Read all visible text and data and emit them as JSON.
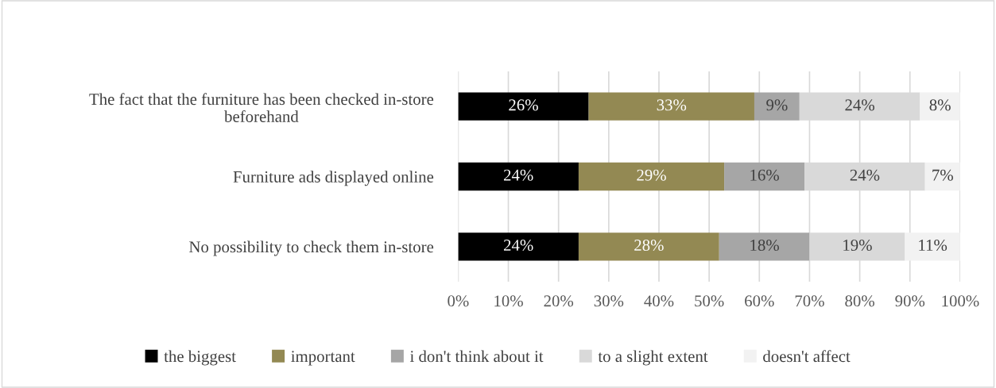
{
  "chart_data": {
    "type": "bar",
    "orientation": "horizontal",
    "stacked": true,
    "categories": [
      "The fact that the furniture has been checked in-store\nbeforehand",
      "Furniture ads displayed online",
      "No possibility to check them in-store"
    ],
    "series": [
      {
        "name": "the biggest",
        "color": "#000000",
        "values": [
          26,
          24,
          24
        ],
        "value_labels": [
          "26%",
          "24%",
          "24%"
        ]
      },
      {
        "name": "important",
        "color": "#938953",
        "values": [
          33,
          29,
          28
        ],
        "value_labels": [
          "33%",
          "29%",
          "28%"
        ]
      },
      {
        "name": "i don't think about it",
        "color": "#a6a6a6",
        "values": [
          9,
          16,
          18
        ],
        "value_labels": [
          "9%",
          "16%",
          "18%"
        ]
      },
      {
        "name": "to a slight extent",
        "color": "#d9d9d9",
        "values": [
          24,
          24,
          19
        ],
        "value_labels": [
          "24%",
          "24%",
          "19%"
        ]
      },
      {
        "name": "doesn't affect",
        "color": "#f2f2f2",
        "values": [
          8,
          7,
          11
        ],
        "value_labels": [
          "8%",
          "7%",
          "11%"
        ]
      }
    ],
    "xlim": [
      0,
      100
    ],
    "xticks": [
      {
        "value": 0,
        "label": "0%"
      },
      {
        "value": 10,
        "label": "10%"
      },
      {
        "value": 20,
        "label": "20%"
      },
      {
        "value": 30,
        "label": "30%"
      },
      {
        "value": 40,
        "label": "40%"
      },
      {
        "value": 50,
        "label": "50%"
      },
      {
        "value": 60,
        "label": "60%"
      },
      {
        "value": 70,
        "label": "70%"
      },
      {
        "value": 80,
        "label": "80%"
      },
      {
        "value": 90,
        "label": "90%"
      },
      {
        "value": 100,
        "label": "100%"
      }
    ],
    "grid": "x",
    "legend": "bottom"
  }
}
